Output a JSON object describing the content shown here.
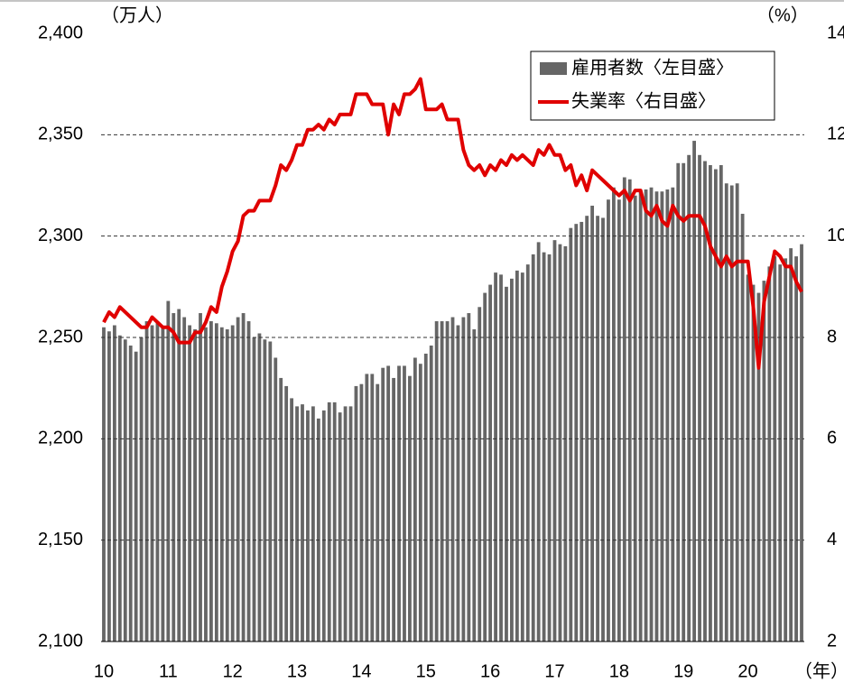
{
  "chart_data": {
    "type": "bar",
    "y_label": "（万人）",
    "y2_label": "（%）",
    "x_label": "（年）",
    "categories": [
      "10",
      null,
      null,
      null,
      null,
      null,
      null,
      null,
      null,
      null,
      null,
      null,
      "11",
      null,
      null,
      null,
      null,
      null,
      null,
      null,
      null,
      null,
      null,
      null,
      "12",
      null,
      null,
      null,
      null,
      null,
      null,
      null,
      null,
      null,
      null,
      null,
      "13",
      null,
      null,
      null,
      null,
      null,
      null,
      null,
      null,
      null,
      null,
      null,
      "14",
      null,
      null,
      null,
      null,
      null,
      null,
      null,
      null,
      null,
      null,
      null,
      "15",
      null,
      null,
      null,
      null,
      null,
      null,
      null,
      null,
      null,
      null,
      null,
      "16",
      null,
      null,
      null,
      null,
      null,
      null,
      null,
      null,
      null,
      null,
      null,
      "17",
      null,
      null,
      null,
      null,
      null,
      null,
      null,
      null,
      null,
      null,
      null,
      "18",
      null,
      null,
      null,
      null,
      null,
      null,
      null,
      null,
      null,
      null,
      null,
      "19",
      null,
      null,
      null,
      null,
      null,
      null,
      null,
      null,
      null,
      null,
      null,
      "20",
      null,
      null,
      null,
      null,
      null,
      null,
      null,
      null,
      null,
      null
    ],
    "series": [
      {
        "name": "雇用者数〈左目盛〉",
        "type": "bar",
        "color": "#666666",
        "values": [
          2255,
          2253,
          2256,
          2251,
          2249,
          2246,
          2243,
          2250,
          2258,
          2256,
          2258,
          2255,
          2268,
          2262,
          2264,
          2260,
          2256,
          2254,
          2262,
          2255,
          2258,
          2257,
          2255,
          2254,
          2256,
          2260,
          2262,
          2258,
          2250,
          2252,
          2249,
          2248,
          2240,
          2230,
          2226,
          2220,
          2216,
          2217,
          2214,
          2216,
          2210,
          2214,
          2218,
          2218,
          2213,
          2216,
          2216,
          2226,
          2227,
          2232,
          2232,
          2227,
          2235,
          2236,
          2230,
          2236,
          2236,
          2231,
          2240,
          2237,
          2242,
          2246,
          2258,
          2258,
          2258,
          2260,
          2256,
          2260,
          2262,
          2254,
          2265,
          2272,
          2276,
          2282,
          2281,
          2275,
          2279,
          2283,
          2282,
          2286,
          2291,
          2297,
          2292,
          2291,
          2298,
          2296,
          2295,
          2304,
          2306,
          2307,
          2310,
          2315,
          2310,
          2309,
          2318,
          2324,
          2318,
          2329,
          2328,
          2320,
          2323,
          2323,
          2324,
          2322,
          2322,
          2323,
          2324,
          2336,
          2336,
          2340,
          2347,
          2340,
          2337,
          2335,
          2333,
          2335,
          2326,
          2325,
          2326,
          2311,
          2281,
          2276,
          2272,
          2278,
          2285,
          2290,
          2286,
          2289,
          2294,
          2290,
          2296
        ]
      },
      {
        "name": "失業率〈右目盛〉",
        "type": "line",
        "axis": "y2",
        "color": "#e00000",
        "values": [
          8.3,
          8.5,
          8.4,
          8.6,
          8.5,
          8.4,
          8.3,
          8.2,
          8.2,
          8.4,
          8.3,
          8.2,
          8.2,
          8.1,
          7.9,
          7.9,
          7.9,
          8.1,
          8.1,
          8.3,
          8.6,
          8.5,
          9.0,
          9.3,
          9.7,
          9.9,
          10.4,
          10.5,
          10.5,
          10.7,
          10.7,
          10.7,
          11.0,
          11.4,
          11.3,
          11.5,
          11.8,
          11.8,
          12.1,
          12.1,
          12.2,
          12.1,
          12.3,
          12.2,
          12.4,
          12.4,
          12.4,
          12.8,
          12.8,
          12.8,
          12.6,
          12.6,
          12.6,
          12.0,
          12.6,
          12.4,
          12.8,
          12.8,
          12.9,
          13.1,
          12.5,
          12.5,
          12.5,
          12.6,
          12.3,
          12.3,
          12.3,
          11.7,
          11.4,
          11.3,
          11.4,
          11.2,
          11.4,
          11.3,
          11.5,
          11.4,
          11.6,
          11.5,
          11.6,
          11.5,
          11.4,
          11.7,
          11.6,
          11.8,
          11.6,
          11.6,
          11.3,
          11.4,
          11.0,
          11.2,
          10.9,
          11.3,
          11.2,
          11.1,
          11.0,
          10.9,
          10.8,
          10.9,
          10.7,
          10.9,
          10.9,
          10.5,
          10.4,
          10.6,
          10.3,
          10.2,
          10.6,
          10.4,
          10.3,
          10.4,
          10.4,
          10.4,
          10.2,
          9.8,
          9.6,
          9.4,
          9.6,
          9.4,
          9.5,
          9.5,
          9.5,
          8.6,
          7.4,
          8.7,
          9.2,
          9.7,
          9.6,
          9.4,
          9.4,
          9.1,
          8.9
        ]
      }
    ],
    "ylim": [
      2100,
      2400
    ],
    "yticks": [
      {
        "value": 2100,
        "label": "2,100"
      },
      {
        "value": 2150,
        "label": "2,150"
      },
      {
        "value": 2200,
        "label": "2,200"
      },
      {
        "value": 2250,
        "label": "2,250"
      },
      {
        "value": 2300,
        "label": "2,300"
      },
      {
        "value": 2350,
        "label": "2,350"
      },
      {
        "value": 2400,
        "label": "2,400"
      }
    ],
    "y2lim": [
      2,
      14
    ],
    "y2ticks": [
      2,
      4,
      6,
      8,
      10,
      12,
      14
    ],
    "grid": true,
    "legend": "upper right"
  }
}
